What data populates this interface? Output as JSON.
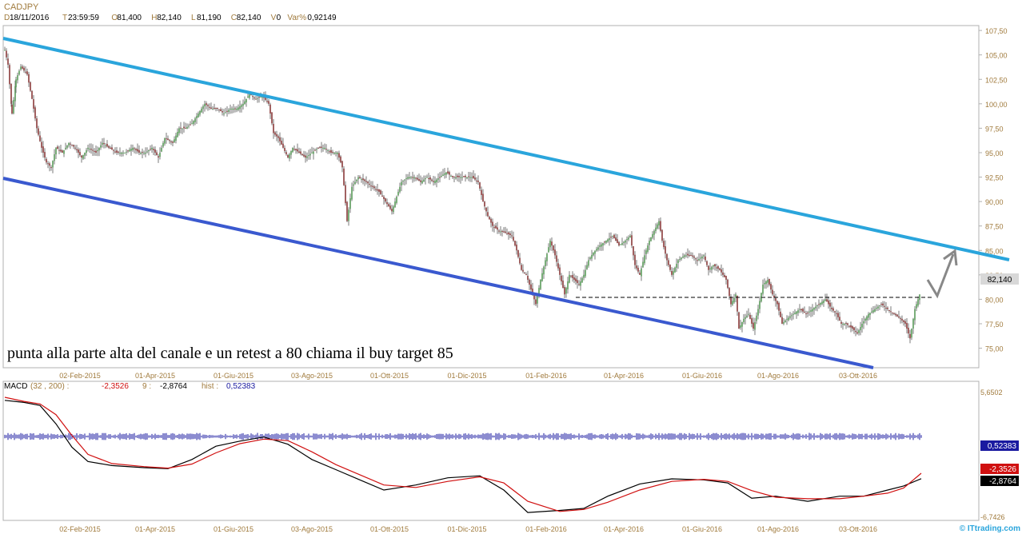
{
  "header": {
    "symbol": "CADJPY",
    "fields": [
      {
        "key": "D",
        "value": "18/11/2016"
      },
      {
        "key": "T",
        "value": "23:59:59"
      },
      {
        "key": "O",
        "value": "81,400"
      },
      {
        "key": "H",
        "value": "82,140"
      },
      {
        "key": "L",
        "value": "81,190"
      },
      {
        "key": "C",
        "value": "82,140"
      },
      {
        "key": "V",
        "value": "0"
      },
      {
        "key": "Var%",
        "value": "0,92149"
      }
    ]
  },
  "annotation": "punta alla parte alta del canale e un retest a 80 chiama il buy target 85",
  "last_price_label": "82,140",
  "watermark": "© ITtrading.com",
  "colors": {
    "upper_channel": "#2aa5dc",
    "lower_channel": "#3a59cf",
    "candles": "#7a7a7a",
    "axis_text": "#a07a3c",
    "macd_line": "#000000",
    "signal_line": "#d01010",
    "histogram": "#1a1aa0"
  },
  "chart_data": [
    {
      "type": "candlestick",
      "title": "CADJPY",
      "x": [
        "02-Feb-2015",
        "01-Apr-2015",
        "01-Giu-2015",
        "03-Ago-2015",
        "01-Ott-2015",
        "01-Dic-2015",
        "01-Feb-2016",
        "01-Apr-2016",
        "01-Giu-2016",
        "01-Ago-2016",
        "03-Ott-2016"
      ],
      "y_ticks": [
        "107,50",
        "105,00",
        "102,50",
        "100,00",
        "97,50",
        "95,00",
        "92,50",
        "90,00",
        "87,50",
        "85,00",
        "82,50",
        "80,00",
        "77,50",
        "75,00"
      ],
      "ylim": [
        73.0,
        108.0
      ],
      "series": [
        {
          "points": [
            [
              0,
              105.5
            ],
            [
              4,
              104.0
            ],
            [
              9,
              99.0
            ],
            [
              14,
              102.5
            ],
            [
              20,
              103.8
            ],
            [
              28,
              103.0
            ],
            [
              34,
              100.5
            ],
            [
              40,
              97.5
            ],
            [
              46,
              95.5
            ],
            [
              52,
              94.0
            ],
            [
              58,
              93.5
            ],
            [
              64,
              95.5
            ],
            [
              72,
              95.0
            ],
            [
              80,
              96.0
            ],
            [
              88,
              95.5
            ],
            [
              96,
              94.5
            ],
            [
              104,
              95.5
            ],
            [
              114,
              95.0
            ],
            [
              122,
              96.0
            ],
            [
              130,
              95.5
            ],
            [
              140,
              95.0
            ],
            [
              150,
              95.0
            ],
            [
              160,
              95.5
            ],
            [
              168,
              95.0
            ],
            [
              176,
              95.0
            ],
            [
              184,
              95.5
            ],
            [
              192,
              94.5
            ],
            [
              200,
              96.5
            ],
            [
              210,
              96.0
            ],
            [
              218,
              97.5
            ],
            [
              226,
              97.5
            ],
            [
              234,
              98.0
            ],
            [
              242,
              99.0
            ],
            [
              250,
              100.0
            ],
            [
              258,
              99.5
            ],
            [
              266,
              99.5
            ],
            [
              274,
              99.0
            ],
            [
              282,
              99.5
            ],
            [
              290,
              99.5
            ],
            [
              298,
              100.0
            ],
            [
              306,
              101.0
            ],
            [
              314,
              100.5
            ],
            [
              322,
              100.8
            ],
            [
              330,
              100.0
            ],
            [
              336,
              97.0
            ],
            [
              342,
              96.5
            ],
            [
              348,
              95.5
            ],
            [
              354,
              94.5
            ],
            [
              360,
              95.5
            ],
            [
              368,
              95.0
            ],
            [
              376,
              94.5
            ],
            [
              384,
              95.0
            ],
            [
              392,
              95.5
            ],
            [
              400,
              95.5
            ],
            [
              408,
              95.0
            ],
            [
              416,
              95.0
            ],
            [
              422,
              93.5
            ],
            [
              428,
              88.0
            ],
            [
              434,
              91.5
            ],
            [
              442,
              92.5
            ],
            [
              452,
              92.0
            ],
            [
              460,
              91.5
            ],
            [
              468,
              91.0
            ],
            [
              476,
              90.0
            ],
            [
              484,
              89.0
            ],
            [
              490,
              90.5
            ],
            [
              496,
              92.0
            ],
            [
              504,
              92.5
            ],
            [
              512,
              92.5
            ],
            [
              520,
              92.0
            ],
            [
              528,
              92.5
            ],
            [
              536,
              92.0
            ],
            [
              544,
              92.5
            ],
            [
              552,
              93.0
            ],
            [
              560,
              92.5
            ],
            [
              568,
              92.5
            ],
            [
              576,
              92.5
            ],
            [
              584,
              92.5
            ],
            [
              592,
              92.0
            ],
            [
              598,
              90.0
            ],
            [
              604,
              88.5
            ],
            [
              610,
              87.5
            ],
            [
              618,
              87.0
            ],
            [
              626,
              86.8
            ],
            [
              634,
              86.5
            ],
            [
              640,
              85.0
            ],
            [
              646,
              83.0
            ],
            [
              652,
              82.5
            ],
            [
              658,
              81.0
            ],
            [
              664,
              79.5
            ],
            [
              670,
              82.0
            ],
            [
              676,
              84.0
            ],
            [
              682,
              86.0
            ],
            [
              688,
              84.5
            ],
            [
              694,
              82.5
            ],
            [
              700,
              80.5
            ],
            [
              706,
              82.5
            ],
            [
              712,
              82.0
            ],
            [
              718,
              81.5
            ],
            [
              724,
              82.5
            ],
            [
              730,
              84.0
            ],
            [
              736,
              84.8
            ],
            [
              744,
              85.5
            ],
            [
              752,
              86.0
            ],
            [
              760,
              86.5
            ],
            [
              768,
              85.5
            ],
            [
              776,
              86.0
            ],
            [
              782,
              86.5
            ],
            [
              788,
              83.5
            ],
            [
              794,
              82.5
            ],
            [
              800,
              84.5
            ],
            [
              806,
              86.0
            ],
            [
              812,
              87.0
            ],
            [
              818,
              88.0
            ],
            [
              822,
              86.0
            ],
            [
              828,
              84.0
            ],
            [
              834,
              82.5
            ],
            [
              842,
              84.0
            ],
            [
              850,
              84.5
            ],
            [
              858,
              84.5
            ],
            [
              866,
              84.0
            ],
            [
              874,
              84.5
            ],
            [
              880,
              83.0
            ],
            [
              886,
              83.5
            ],
            [
              894,
              83.0
            ],
            [
              902,
              82.0
            ],
            [
              908,
              79.5
            ],
            [
              914,
              80.5
            ],
            [
              918,
              77.0
            ],
            [
              924,
              78.0
            ],
            [
              930,
              78.5
            ],
            [
              936,
              77.0
            ],
            [
              942,
              79.0
            ],
            [
              948,
              81.5
            ],
            [
              954,
              82.0
            ],
            [
              960,
              80.5
            ],
            [
              966,
              79.5
            ],
            [
              972,
              77.5
            ],
            [
              978,
              78.0
            ],
            [
              986,
              78.5
            ],
            [
              994,
              79.0
            ],
            [
              1002,
              78.5
            ],
            [
              1010,
              79.0
            ],
            [
              1018,
              79.5
            ],
            [
              1026,
              80.0
            ],
            [
              1034,
              79.0
            ],
            [
              1040,
              78.5
            ],
            [
              1046,
              77.5
            ],
            [
              1052,
              77.5
            ],
            [
              1060,
              77.0
            ],
            [
              1066,
              76.5
            ],
            [
              1072,
              77.5
            ],
            [
              1080,
              78.5
            ],
            [
              1088,
              79.0
            ],
            [
              1096,
              79.5
            ],
            [
              1104,
              79.0
            ],
            [
              1112,
              78.5
            ],
            [
              1120,
              78.0
            ],
            [
              1126,
              77.5
            ],
            [
              1132,
              76.0
            ],
            [
              1138,
              79.0
            ],
            [
              1144,
              80.5
            ],
            [
              1150,
              82.1
            ]
          ]
        }
      ]
    },
    {
      "type": "line",
      "title": "MACD",
      "params": "(32 , 200)",
      "macd_value": "-2,3526",
      "signal_period": "9",
      "signal_value": "-2,8764",
      "hist_label": "hist",
      "hist_value": "0,52383",
      "y_top_label": "5,6502",
      "y_bottom_label": "-6,7426",
      "right_labels": [
        "0,52383",
        "-2,3526",
        "-2,8764"
      ],
      "x": [
        "02-Feb-2015",
        "01-Apr-2015",
        "01-Giu-2015",
        "03-Ago-2015",
        "01-Ott-2015",
        "01-Dic-2015",
        "01-Feb-2016",
        "01-Apr-2016",
        "01-Giu-2016",
        "01-Ago-2016",
        "03-Ott-2016"
      ],
      "ylim": [
        -6.7426,
        5.6502
      ]
    }
  ]
}
